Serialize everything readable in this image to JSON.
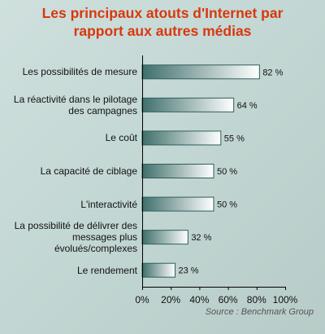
{
  "chart_data": {
    "type": "bar",
    "orientation": "horizontal",
    "title": "Les principaux atouts d'Internet par rapport aux autres médias",
    "categories": [
      "Les possibilités de mesure",
      "La réactivité dans le pilotage des campagnes",
      "Le coût",
      "La capacité de ciblage",
      "L'interactivité",
      "La possibilité de délivrer des messages plus évolués/complexes",
      "Le rendement"
    ],
    "category_display": [
      "Les possibilités de mesure",
      "La réactivité dans le pilotage\ndes campagnes",
      "Le coût",
      "La capacité de ciblage",
      "L'interactivité",
      "La possibilité de délivrer des\nmessages plus\névolués/complexes",
      "Le rendement"
    ],
    "values": [
      82,
      64,
      55,
      50,
      50,
      32,
      23
    ],
    "value_labels": [
      "82 %",
      "64 %",
      "55 %",
      "50 %",
      "50 %",
      "32 %",
      "23 %"
    ],
    "xlim": [
      0,
      100
    ],
    "xticks": [
      "0%",
      "20%",
      "40%",
      "60%",
      "80%",
      "100%"
    ],
    "grid": false,
    "colors": {
      "title": "#d8380e",
      "bar_dark": "#3f6f6b",
      "bar_light": "#ffffff",
      "bar_edge": "#2f5f5b"
    }
  },
  "title_lines": [
    "Les principaux atouts d'Internet par",
    "rapport aux autres médias"
  ],
  "source": "Source : Benchmark Group"
}
